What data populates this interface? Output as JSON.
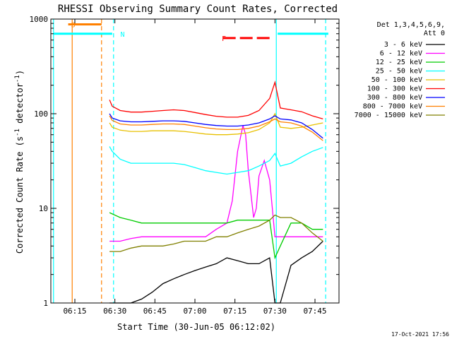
{
  "chart_data": {
    "type": "line",
    "title": "RHESSI Observing Summary Count Rates, Corrected",
    "xlabel": "Start Time (30-Jun-05 06:12:02)",
    "ylabel": "Corrected Count Rate (s",
    "ylabel_sup1": "-1",
    "ylabel_mid": " detector",
    "ylabel_sup2": "-1",
    "ylabel_end": ")",
    "yscale": "log",
    "ylim": [
      1,
      1000
    ],
    "xlim_min": [
      6.0,
      55.0
    ],
    "x_units": "minutes after 06:12:02 approx",
    "x_ticks": [
      {
        "t": 3,
        "label": "06:15"
      },
      {
        "t": 18,
        "label": "06:30"
      },
      {
        "t": 33,
        "label": "06:45"
      },
      {
        "t": 48,
        "label": "07:00"
      },
      {
        "t": 63,
        "label": "07:15"
      },
      {
        "t": 78,
        "label": "07:30"
      },
      {
        "t": 93,
        "label": "07:45"
      }
    ],
    "y_ticks": [
      {
        "v": 1,
        "label": "1"
      },
      {
        "v": 10,
        "label": "10"
      },
      {
        "v": 100,
        "label": "100"
      },
      {
        "v": 1000,
        "label": "1000"
      }
    ],
    "legend_header": [
      "Det 1,3,4,5,6,9,",
      "Att 0"
    ],
    "series": [
      {
        "name": "3 - 6 keV",
        "color": "#000000",
        "x": [
          16,
          17,
          20,
          24,
          28,
          32,
          36,
          40,
          44,
          48,
          52,
          56,
          60,
          64,
          68,
          72,
          76,
          78,
          80,
          84,
          88,
          92,
          96
        ],
        "values": [
          1.0,
          1.0,
          1.0,
          1.0,
          1.1,
          1.3,
          1.6,
          1.8,
          2.0,
          2.2,
          2.4,
          2.6,
          3.0,
          2.8,
          2.6,
          2.6,
          3.0,
          1.0,
          1.0,
          2.5,
          3.0,
          3.5,
          4.5
        ]
      },
      {
        "name": "6 - 12 keV",
        "color": "#ff00ff",
        "x": [
          16,
          20,
          24,
          28,
          32,
          36,
          40,
          44,
          48,
          52,
          56,
          60,
          62,
          64,
          66,
          67,
          68,
          70,
          71,
          72,
          74,
          76,
          77,
          78,
          80,
          84,
          88,
          92,
          96
        ],
        "values": [
          4.5,
          4.5,
          4.8,
          5.0,
          5.0,
          5.0,
          5.0,
          5.0,
          5.0,
          5.0,
          6.0,
          7.0,
          12.0,
          40.0,
          75.0,
          60.0,
          25.0,
          8.0,
          10.0,
          22.0,
          32.0,
          20.0,
          10.0,
          5.0,
          5.0,
          5.0,
          5.0,
          5.0,
          5.0
        ]
      },
      {
        "name": "12 - 25 keV",
        "color": "#00cc00",
        "x": [
          16,
          20,
          24,
          28,
          32,
          36,
          40,
          44,
          48,
          52,
          56,
          60,
          64,
          68,
          72,
          76,
          78,
          80,
          84,
          88,
          92,
          96
        ],
        "values": [
          9.0,
          8.0,
          7.5,
          7.0,
          7.0,
          7.0,
          7.0,
          7.0,
          7.0,
          7.0,
          7.0,
          7.0,
          7.5,
          7.5,
          7.5,
          7.5,
          3.0,
          4.0,
          7.0,
          7.0,
          6.0,
          6.0
        ]
      },
      {
        "name": "25 - 50 keV",
        "color": "#00ffff",
        "x": [
          16,
          17,
          20,
          24,
          28,
          32,
          36,
          40,
          44,
          48,
          52,
          56,
          60,
          64,
          68,
          72,
          76,
          78,
          80,
          84,
          88,
          92,
          96
        ],
        "values": [
          45,
          40,
          33,
          30,
          30,
          30,
          30,
          30,
          29,
          27,
          25,
          24,
          23,
          24,
          25,
          28,
          32,
          38,
          28,
          30,
          35,
          40,
          44
        ]
      },
      {
        "name": "50 - 100 keV",
        "color": "#e8c000",
        "x": [
          16,
          17,
          20,
          24,
          28,
          32,
          36,
          40,
          44,
          48,
          52,
          56,
          60,
          64,
          68,
          72,
          76,
          78,
          80,
          84,
          88,
          92,
          96
        ],
        "values": [
          80,
          72,
          67,
          65,
          65,
          66,
          66,
          66,
          65,
          63,
          61,
          60,
          60,
          61,
          63,
          68,
          80,
          100,
          72,
          70,
          72,
          76,
          80
        ]
      },
      {
        "name": "100 - 300 keV",
        "color": "#ff0000",
        "x": [
          16,
          17,
          20,
          24,
          28,
          32,
          36,
          40,
          44,
          48,
          52,
          56,
          60,
          64,
          68,
          72,
          76,
          78,
          80,
          84,
          88,
          92,
          96
        ],
        "values": [
          140,
          120,
          108,
          104,
          104,
          106,
          108,
          110,
          108,
          103,
          98,
          94,
          92,
          92,
          96,
          108,
          145,
          215,
          115,
          110,
          105,
          95,
          88
        ]
      },
      {
        "name": "300 - 800 keV",
        "color": "#0000ff",
        "x": [
          16,
          17,
          20,
          24,
          28,
          32,
          36,
          40,
          44,
          48,
          52,
          56,
          60,
          64,
          68,
          72,
          76,
          78,
          80,
          84,
          88,
          92,
          96
        ],
        "values": [
          100,
          90,
          84,
          82,
          82,
          83,
          84,
          84,
          83,
          80,
          77,
          75,
          74,
          74,
          76,
          80,
          88,
          95,
          88,
          86,
          80,
          68,
          55
        ]
      },
      {
        "name": "800 - 7000 keV",
        "color": "#ff8000",
        "x": [
          16,
          17,
          20,
          24,
          28,
          32,
          36,
          40,
          44,
          48,
          52,
          56,
          60,
          64,
          68,
          72,
          76,
          78,
          80,
          84,
          88,
          92,
          96
        ],
        "values": [
          95,
          85,
          78,
          76,
          76,
          77,
          78,
          78,
          77,
          74,
          71,
          69,
          68,
          68,
          70,
          74,
          82,
          88,
          82,
          80,
          74,
          64,
          52
        ]
      },
      {
        "name": "7000 - 15000 keV",
        "color": "#808000",
        "x": [
          16,
          20,
          24,
          28,
          32,
          36,
          40,
          44,
          48,
          52,
          56,
          60,
          64,
          68,
          72,
          76,
          78,
          80,
          84,
          88,
          92,
          96
        ],
        "values": [
          3.5,
          3.5,
          3.8,
          4.0,
          4.0,
          4.0,
          4.2,
          4.5,
          4.5,
          4.5,
          5.0,
          5.0,
          5.5,
          6.0,
          6.5,
          7.5,
          8.5,
          8.0,
          8.0,
          7.0,
          5.5,
          4.5
        ]
      }
    ],
    "annotations": [
      {
        "letter": "S",
        "color": "#ff8000",
        "text_x_t": 0.5
      },
      {
        "letter": "N",
        "color": "#00ffff",
        "text_x_t": 19
      },
      {
        "letter": "F",
        "color": "#ff0000",
        "text_x_t": 57
      }
    ],
    "bars": [
      {
        "name": "S",
        "color": "#ff8000",
        "t0": 0.5,
        "t1": 13.0,
        "level": 880
      },
      {
        "name": "N",
        "color": "#00ffff",
        "t0": -5,
        "t1": 17.0,
        "level": 700
      },
      {
        "name": "N",
        "color": "#00ffff",
        "t0": 79.0,
        "t1": 98,
        "level": 700
      },
      {
        "name": "F",
        "color": "#ff0000",
        "t0": 58.5,
        "t1": 76.0,
        "level": 630
      }
    ],
    "vlines": [
      {
        "t": 2.0,
        "color": "#ff8000",
        "dashed": false
      },
      {
        "t": 13.0,
        "color": "#ff8000",
        "dashed": true
      },
      {
        "t": 17.5,
        "color": "#00ffff",
        "dashed": true
      },
      {
        "t": 78.5,
        "color": "#00ffff",
        "dashed": false
      },
      {
        "t": 97.0,
        "color": "#00ffff",
        "dashed": true
      },
      {
        "t": -5,
        "color": "#00ffff",
        "dashed": false
      }
    ],
    "timestamp": "17-Oct-2021 17:56"
  }
}
